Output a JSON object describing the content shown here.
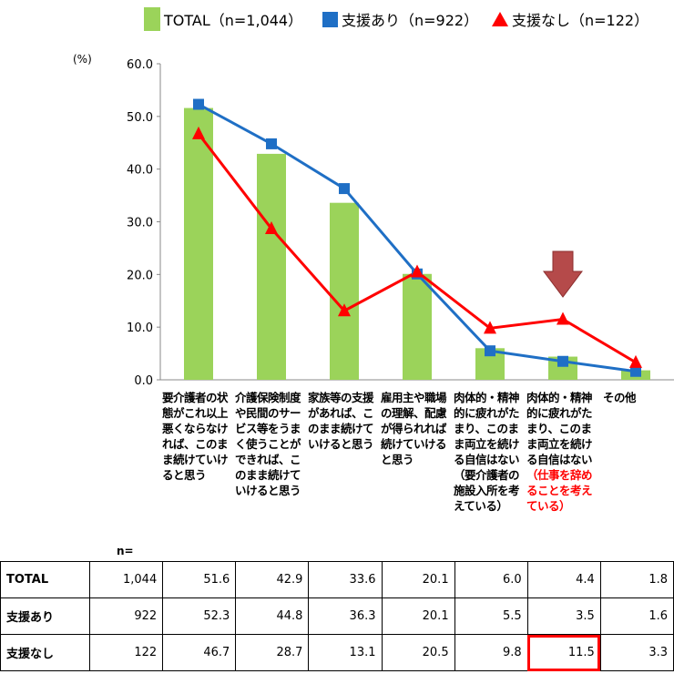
{
  "legend": {
    "total": "TOTAL（n=1,044）",
    "with_support": "支援あり（n=922）",
    "without_support": "支援なし（n=122）"
  },
  "unit_label": "(%)",
  "n_label": "n=",
  "colors": {
    "total": "#9bd35a",
    "with_support": "#1f6fc5",
    "without_support": "#ff0000",
    "arrow": "#b54a4a"
  },
  "categories": [
    {
      "text": "要介護者の状態がこれ以上悪くならなければ、このまま続けていけると思う",
      "highlight": ""
    },
    {
      "text": "介護保険制度や民間のサービス等をうまく使うことができれば、このまま続けていけると思う",
      "highlight": ""
    },
    {
      "text": "家族等の支援があれば、このまま続けていけると思う",
      "highlight": ""
    },
    {
      "text": "雇用主や職場の理解、配慮が得られれば続けていけると思う",
      "highlight": ""
    },
    {
      "text": "肉体的・精神的に疲れがたまり、このまま両立を続ける自信はない（要介護者の施設入所を考えている）",
      "highlight": ""
    },
    {
      "text": "肉体的・精神的に疲れがたまり、このまま両立を続ける自信はない",
      "highlight": "（仕事を辞めることを考えている）"
    },
    {
      "text": "その他",
      "highlight": ""
    }
  ],
  "table": {
    "rows": [
      {
        "label": "TOTAL",
        "n": "1,044",
        "values": [
          "51.6",
          "42.9",
          "33.6",
          "20.1",
          "6.0",
          "4.4",
          "1.8"
        ]
      },
      {
        "label": "支援あり",
        "n": "922",
        "values": [
          "52.3",
          "44.8",
          "36.3",
          "20.1",
          "5.5",
          "3.5",
          "1.6"
        ]
      },
      {
        "label": "支援なし",
        "n": "122",
        "values": [
          "46.7",
          "28.7",
          "13.1",
          "20.5",
          "9.8",
          "11.5",
          "3.3"
        ]
      }
    ]
  },
  "chart_data": {
    "type": "bar",
    "ylabel": "(%)",
    "ylim": [
      0,
      60
    ],
    "yticks": [
      "0.0",
      "10.0",
      "20.0",
      "30.0",
      "40.0",
      "50.0",
      "60.0"
    ],
    "categories": [
      "要介護者の状態がこれ以上悪くならなければ、このまま続けていけると思う",
      "介護保険制度や民間のサービス等をうまく使うことができれば、このまま続けていけると思う",
      "家族等の支援があれば、このまま続けていけると思う",
      "雇用主や職場の理解、配慮が得られれば続けていけると思う",
      "肉体的・精神的に疲れがたまり、このまま両立を続ける自信はない（要介護者の施設入所を考えている）",
      "肉体的・精神的に疲れがたまり、このまま両立を続ける自信はない（仕事を辞めることを考えている）",
      "その他"
    ],
    "series": [
      {
        "name": "TOTAL（n=1,044）",
        "kind": "bar",
        "values": [
          51.6,
          42.9,
          33.6,
          20.1,
          6.0,
          4.4,
          1.8
        ]
      },
      {
        "name": "支援あり（n=922）",
        "kind": "line",
        "marker": "square",
        "values": [
          52.3,
          44.8,
          36.3,
          20.1,
          5.5,
          3.5,
          1.6
        ]
      },
      {
        "name": "支援なし（n=122）",
        "kind": "line",
        "marker": "triangle",
        "values": [
          46.7,
          28.7,
          13.1,
          20.5,
          9.8,
          11.5,
          3.3
        ]
      }
    ],
    "grid": false,
    "legend": "top",
    "annotation": {
      "type": "down-arrow",
      "category_index": 5
    }
  }
}
